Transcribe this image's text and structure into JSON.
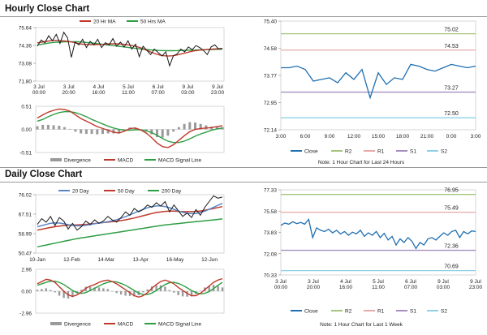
{
  "sections": {
    "hourly_title": "Hourly Close Chart",
    "daily_title": "Daily Close Chart"
  },
  "notes": {
    "hourly": "Note: 1 Hour Chart for Last 24 Hours",
    "daily": "Note: 1 Hour Chart for Last 1 Week"
  },
  "colors": {
    "price": "#1a1a1a",
    "ma_short": "#c0392b",
    "ma_mid": "#2e9e44",
    "ma_20day": "#5a86c8",
    "ma_50day": "#c0392b",
    "ma_200day": "#2e9e44",
    "macd": "#c0392b",
    "macd_signal": "#2e9e44",
    "divergence": "#9a9a9a",
    "close_line": "#1f6fb2",
    "r2": "#a6c47a",
    "r1": "#e7a8a8",
    "s1": "#a58fbf",
    "s2": "#8ed0e6"
  },
  "chart_data": [
    {
      "id": "hourly-price",
      "type": "line",
      "legend": [
        "20 Hr MA",
        "50 Hrs MA"
      ],
      "yticks": [
        "75.64",
        "74.36",
        "73.08",
        "71.80"
      ],
      "ylim": [
        71.8,
        75.64
      ],
      "xticks": [
        "3 Jul\n00:00",
        "3 Jul\n20:00",
        "4 Jul\n16:00",
        "5 Jul\n11:00",
        "6 Jul\n07:00",
        "9 Jul\n03:00",
        "9 Jul\n23:00"
      ],
      "series": [
        {
          "key": "close",
          "values": [
            74.3,
            74.75,
            74.55,
            75.05,
            74.7,
            75.15,
            74.5,
            75.3,
            74.9,
            73.5,
            74.6,
            74.4,
            74.8,
            74.2,
            74.65,
            74.4,
            74.8,
            74.2,
            74.55,
            74.4,
            74.85,
            74.3,
            74.6,
            74.25,
            74.7,
            74.1,
            74.45,
            73.55,
            74.3,
            74.0,
            73.7,
            74.1,
            73.85,
            73.6,
            73.9,
            72.9,
            73.6,
            73.75,
            74.1,
            73.9,
            74.25,
            74.05,
            74.35,
            74.2,
            74.0,
            73.7,
            74.25,
            74.4,
            74.1,
            74.15
          ]
        },
        {
          "key": "ma20",
          "values": [
            74.55,
            74.6,
            74.65,
            74.7,
            74.72,
            74.7,
            74.68,
            74.64,
            74.58,
            74.5,
            74.45,
            74.43,
            74.42,
            74.42,
            74.43,
            74.45,
            74.47,
            74.48,
            74.47,
            74.44,
            74.4,
            74.35,
            74.28,
            74.18,
            74.05,
            73.9,
            73.78,
            73.68,
            73.62,
            73.6,
            73.62,
            73.68,
            73.76,
            73.84,
            73.92,
            73.98,
            74.02,
            74.05,
            74.08,
            74.1,
            74.12,
            74.14
          ]
        },
        {
          "key": "ma50",
          "values": [
            74.4,
            74.45,
            74.5,
            74.55,
            74.58,
            74.6,
            74.62,
            74.63,
            74.63,
            74.62,
            74.6,
            74.57,
            74.54,
            74.5,
            74.46,
            74.42,
            74.38,
            74.34,
            74.3,
            74.26,
            74.22,
            74.18,
            74.14,
            74.1,
            74.07,
            74.04,
            74.02,
            74.0,
            73.99,
            73.98,
            73.98,
            73.99,
            74.0,
            74.01,
            74.02,
            74.03,
            74.04,
            74.05,
            74.06,
            74.07,
            74.08,
            74.09
          ]
        }
      ]
    },
    {
      "id": "hourly-macd",
      "type": "line",
      "legend": [
        "Divergence",
        "MACD",
        "MACD Signal Line"
      ],
      "yticks": [
        "0.51",
        "0.00",
        "-0.51"
      ],
      "ylim": [
        -0.51,
        0.51
      ],
      "series": [
        {
          "key": "macd",
          "values": [
            0.25,
            0.32,
            0.38,
            0.42,
            0.45,
            0.44,
            0.4,
            0.32,
            0.24,
            0.18,
            0.12,
            0.06,
            0.02,
            -0.02,
            -0.06,
            -0.08,
            -0.04,
            0.02,
            0.03,
            -0.01,
            -0.08,
            -0.18,
            -0.3,
            -0.38,
            -0.4,
            -0.34,
            -0.24,
            -0.14,
            -0.05,
            0.0,
            0.02,
            0.03,
            0.04,
            0.06,
            0.08
          ]
        },
        {
          "key": "signal",
          "values": [
            0.18,
            0.22,
            0.28,
            0.33,
            0.37,
            0.39,
            0.39,
            0.37,
            0.33,
            0.28,
            0.22,
            0.17,
            0.12,
            0.07,
            0.03,
            0.0,
            -0.02,
            -0.02,
            -0.01,
            -0.01,
            -0.03,
            -0.07,
            -0.13,
            -0.2,
            -0.26,
            -0.29,
            -0.29,
            -0.26,
            -0.21,
            -0.15,
            -0.1,
            -0.06,
            -0.02,
            0.01,
            0.03
          ]
        }
      ]
    },
    {
      "id": "hourly-levels",
      "type": "line",
      "yticks": [
        "75.40",
        "74.58",
        "73.77",
        "72.95",
        "72.14"
      ],
      "ylim": [
        72.14,
        75.4
      ],
      "xticks": [
        "3:00",
        "6:00",
        "9:00",
        "12:00",
        "15:00",
        "18:00",
        "21:00",
        "0:00",
        "3:00"
      ],
      "legend": [
        "Close",
        "R2",
        "R1",
        "S1",
        "S2"
      ],
      "levels": [
        {
          "name": "R2",
          "value": 75.02
        },
        {
          "name": "R1",
          "value": 74.53
        },
        {
          "name": "S1",
          "value": 73.27
        },
        {
          "name": "S2",
          "value": 72.5
        }
      ],
      "level_labels": [
        "75.02",
        "74.53",
        "73.27",
        "72.50"
      ],
      "close": [
        74.0,
        74.0,
        74.05,
        73.95,
        73.6,
        73.65,
        73.7,
        73.55,
        73.85,
        73.65,
        73.95,
        73.1,
        73.85,
        73.5,
        73.7,
        73.65,
        74.1,
        74.05,
        73.95,
        73.9,
        74.0,
        74.1,
        74.05,
        74.0,
        74.05
      ]
    },
    {
      "id": "daily-price",
      "type": "line",
      "legend": [
        "20 Day",
        "50 Day",
        "200 Day"
      ],
      "yticks": [
        "76.02",
        "67.51",
        "58.99",
        "50.47"
      ],
      "ylim": [
        50.47,
        76.02
      ],
      "xticks": [
        "10-Jan",
        "12-Feb",
        "14-Mar",
        "13-Apr",
        "16-May",
        "12-Jun"
      ],
      "series": [
        {
          "key": "close",
          "values": [
            63.0,
            65.5,
            64.0,
            66.5,
            62.5,
            66.0,
            64.5,
            61.0,
            63.5,
            60.5,
            62.0,
            64.5,
            63.0,
            65.0,
            63.5,
            64.5,
            66.5,
            65.0,
            64.0,
            66.0,
            68.5,
            67.0,
            70.0,
            68.5,
            69.5,
            71.5,
            70.5,
            72.5,
            71.0,
            73.0,
            68.5,
            71.5,
            69.0,
            66.5,
            68.0,
            66.0,
            69.5,
            67.0,
            70.5,
            73.0,
            75.5,
            74.5,
            75.0
          ]
        },
        {
          "key": "ma20",
          "values": [
            62.0,
            62.5,
            63.0,
            63.5,
            63.7,
            63.6,
            63.3,
            62.9,
            62.6,
            62.4,
            62.4,
            62.6,
            62.9,
            63.3,
            63.6,
            63.9,
            64.2,
            64.6,
            65.1,
            65.7,
            66.4,
            67.2,
            68.0,
            68.8,
            69.6,
            70.3,
            70.8,
            71.1,
            71.1,
            70.8,
            70.3,
            69.6,
            68.9,
            68.3,
            67.9,
            67.7,
            67.8,
            68.2,
            68.8,
            69.6,
            70.5,
            71.4,
            72.2
          ]
        },
        {
          "key": "ma50",
          "values": [
            60.5,
            60.9,
            61.3,
            61.7,
            62.0,
            62.3,
            62.5,
            62.6,
            62.7,
            62.8,
            62.9,
            63.0,
            63.2,
            63.4,
            63.6,
            63.8,
            64.0,
            64.2,
            64.4,
            64.7,
            65.0,
            65.4,
            65.8,
            66.3,
            66.8,
            67.3,
            67.8,
            68.2,
            68.5,
            68.7,
            68.8,
            68.8,
            68.7,
            68.6,
            68.6,
            68.6,
            68.7,
            68.9,
            69.2,
            69.6,
            70.0,
            70.4,
            70.8
          ]
        },
        {
          "key": "ma200",
          "values": [
            53.2,
            53.6,
            54.0,
            54.4,
            54.8,
            55.2,
            55.6,
            56.0,
            56.4,
            56.8,
            57.1,
            57.4,
            57.7,
            58.0,
            58.3,
            58.6,
            58.9,
            59.2,
            59.5,
            59.8,
            60.1,
            60.4,
            60.7,
            61.0,
            61.3,
            61.6,
            61.9,
            62.2,
            62.5,
            62.8,
            63.0,
            63.2,
            63.4,
            63.6,
            63.8,
            64.0,
            64.2,
            64.4,
            64.6,
            64.8,
            65.0,
            65.2,
            65.4
          ]
        }
      ]
    },
    {
      "id": "daily-macd",
      "type": "line",
      "legend": [
        "Divergence",
        "MACD",
        "MACD Signal Line"
      ],
      "yticks": [
        "2.96",
        "0.00",
        "-2.96"
      ],
      "ylim": [
        -2.96,
        2.96
      ],
      "series": [
        {
          "key": "macd",
          "values": [
            1.0,
            1.3,
            1.6,
            1.5,
            1.2,
            0.6,
            0.0,
            -0.5,
            -0.7,
            -0.5,
            -0.1,
            0.4,
            0.7,
            0.9,
            1.2,
            1.4,
            1.5,
            1.3,
            1.0,
            0.6,
            0.2,
            -0.2,
            -0.6,
            -0.8,
            -0.6,
            -0.2,
            0.4,
            0.9,
            1.3,
            1.5,
            1.3,
            1.0,
            0.5,
            0.1,
            -0.3,
            -0.6,
            -0.6,
            -0.3,
            0.2,
            0.7,
            1.2,
            1.5,
            1.7
          ]
        },
        {
          "key": "signal",
          "values": [
            0.8,
            1.0,
            1.2,
            1.35,
            1.35,
            1.2,
            0.9,
            0.5,
            0.1,
            -0.2,
            -0.3,
            -0.2,
            0.1,
            0.4,
            0.7,
            1.0,
            1.2,
            1.3,
            1.25,
            1.05,
            0.8,
            0.45,
            0.1,
            -0.25,
            -0.45,
            -0.45,
            -0.25,
            0.1,
            0.5,
            0.9,
            1.15,
            1.2,
            1.05,
            0.8,
            0.45,
            0.1,
            -0.2,
            -0.35,
            -0.3,
            -0.05,
            0.35,
            0.8,
            1.2
          ]
        }
      ]
    },
    {
      "id": "daily-levels",
      "type": "line",
      "yticks": [
        "77.33",
        "75.58",
        "73.83",
        "72.08",
        "70.33"
      ],
      "ylim": [
        70.33,
        77.33
      ],
      "xticks": [
        "3 Jul\n00:00",
        "3 Jul\n20:00",
        "4 Jul\n16:00",
        "5 Jul\n11:00",
        "6 Jul\n07:00",
        "9 Jul\n03:00",
        "9 Jul\n23:00"
      ],
      "legend": [
        "Close",
        "R2",
        "R1",
        "S1",
        "S2"
      ],
      "levels": [
        {
          "name": "R2",
          "value": 76.95
        },
        {
          "name": "R1",
          "value": 75.49
        },
        {
          "name": "S1",
          "value": 72.36
        },
        {
          "name": "S2",
          "value": 70.69
        }
      ],
      "level_labels": [
        "76.95",
        "75.49",
        "72.36",
        "70.69"
      ],
      "close": [
        74.4,
        74.6,
        74.5,
        74.7,
        74.55,
        74.65,
        74.5,
        74.9,
        73.4,
        74.2,
        74.0,
        73.9,
        74.1,
        73.8,
        74.0,
        73.7,
        73.9,
        73.6,
        73.85,
        73.7,
        74.0,
        73.5,
        73.8,
        73.6,
        73.9,
        73.4,
        73.75,
        73.2,
        73.5,
        72.8,
        73.3,
        73.0,
        73.4,
        73.1,
        72.5,
        73.0,
        72.8,
        73.3,
        73.4,
        73.2,
        73.5,
        73.8,
        73.6,
        73.9,
        74.0,
        73.4,
        73.9,
        73.7,
        73.95,
        73.9
      ]
    }
  ]
}
